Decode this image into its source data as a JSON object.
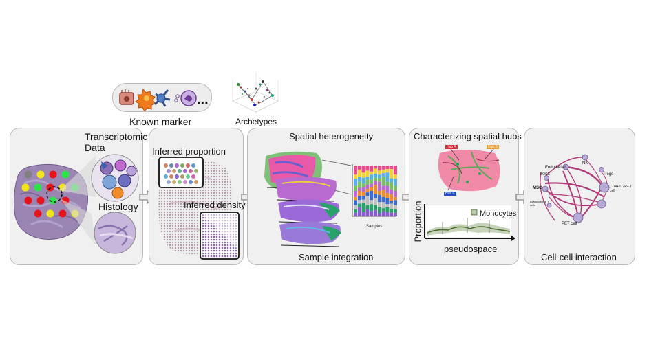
{
  "colors": {
    "panel_bg": "#f0f0f0",
    "panel_border": "#b9b9b9",
    "tissue": "#9b86b3",
    "spot_red": "#e8141b",
    "spot_yellow": "#f2e61b",
    "spot_green": "#2ee24a",
    "spot_gray": "#808080",
    "hub_pink": "#f08aa6",
    "network_edge": "#b03a78",
    "node_fill": "#b9a9d6"
  },
  "top": {
    "known_marker": "Known marker",
    "ellipsis": "...",
    "archetypes": "Archetypes"
  },
  "panel1": {
    "transcriptomic": "Transcriptomic",
    "data": "Data",
    "histology": "Histology"
  },
  "panel2": {
    "inferred_proportion": "Inferred proportion",
    "inferred_density": "Inferred density"
  },
  "panel3": {
    "title": "Spatial heterogeneity",
    "footer": "Sample integration",
    "bar_axis_label": "Samples"
  },
  "panel4": {
    "title": "Characterizing spatial hubs",
    "hub_labels": [
      "Hub A",
      "Hub B",
      "Hub C"
    ],
    "line_ylabel": "Proportion",
    "line_xlabel": "pseudospace",
    "line_legend": "Monocytes"
  },
  "panel5": {
    "footer": "Cell-cell interaction",
    "nodes": [
      "Endothelial",
      "NK",
      "MOSC",
      "Tregs",
      "MSC",
      "CD4+ IL7R+ T cell",
      "Dysfunctional T cells",
      "PET cell"
    ]
  }
}
